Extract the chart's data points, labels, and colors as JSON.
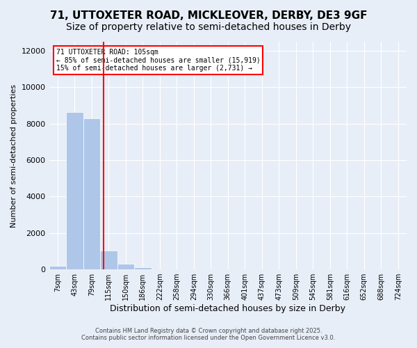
{
  "title_line1": "71, UTTOXETER ROAD, MICKLEOVER, DERBY, DE3 9GF",
  "title_line2": "Size of property relative to semi-detached houses in Derby",
  "xlabel": "Distribution of semi-detached houses by size in Derby",
  "ylabel": "Number of semi-detached properties",
  "annotation_line1": "71 UTTOXETER ROAD: 105sqm",
  "annotation_line2": "← 85% of semi-detached houses are smaller (15,919)",
  "annotation_line3": "15% of semi-detached houses are larger (2,731) →",
  "footnote1": "Contains HM Land Registry data © Crown copyright and database right 2025.",
  "footnote2": "Contains public sector information licensed under the Open Government Licence v3.0.",
  "bin_labels": [
    "7sqm",
    "43sqm",
    "79sqm",
    "115sqm",
    "150sqm",
    "186sqm",
    "222sqm",
    "258sqm",
    "294sqm",
    "330sqm",
    "366sqm",
    "401sqm",
    "437sqm",
    "473sqm",
    "509sqm",
    "545sqm",
    "581sqm",
    "616sqm",
    "652sqm",
    "688sqm",
    "724sqm"
  ],
  "bar_values": [
    200,
    8650,
    8300,
    1050,
    300,
    100,
    0,
    0,
    0,
    0,
    0,
    0,
    0,
    0,
    0,
    0,
    0,
    0,
    0,
    0,
    0
  ],
  "bar_color": "#aec6e8",
  "vline_color": "red",
  "vline_x": 2.72,
  "ylim": [
    0,
    12500
  ],
  "yticks": [
    0,
    2000,
    4000,
    6000,
    8000,
    10000,
    12000
  ],
  "bg_color": "#e8eef8",
  "plot_bg_color": "#e8eef8",
  "grid_color": "white",
  "title_fontsize": 11,
  "subtitle_fontsize": 10
}
